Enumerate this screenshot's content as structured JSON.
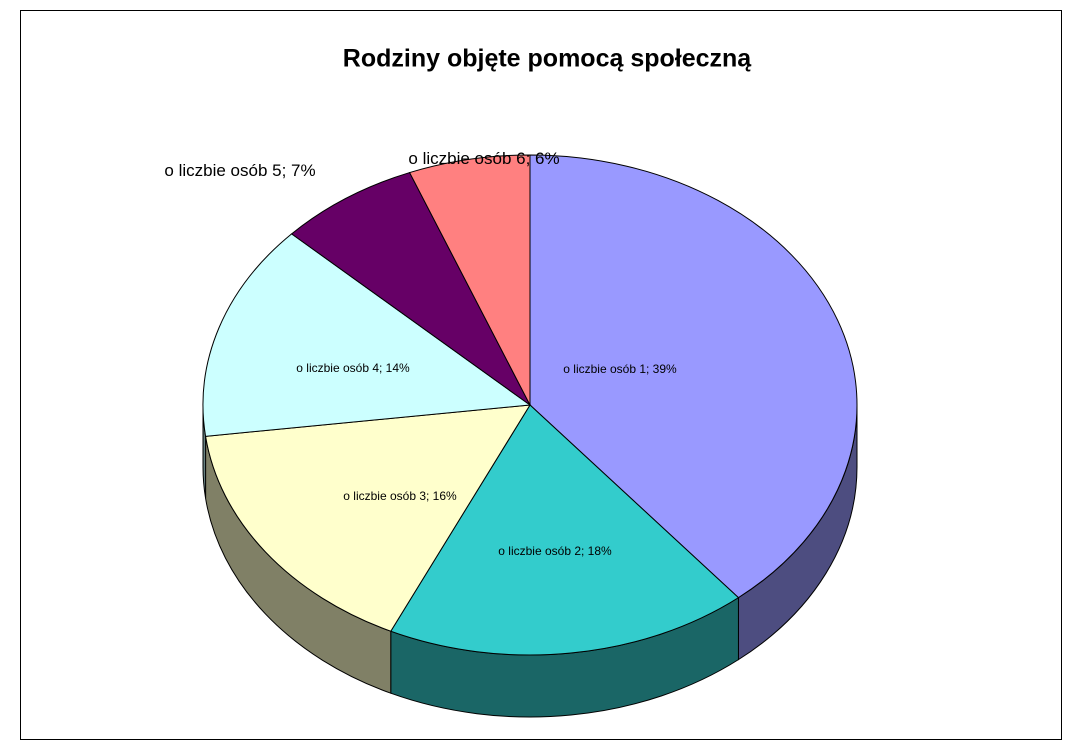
{
  "chart_data": {
    "type": "pie3d",
    "title": "Rodziny objęte pomocą społeczną",
    "categories": [
      "o liczbie osób 1",
      "o liczbie osób 2",
      "o liczbie osób 3",
      "o liczbie osób 4",
      "o liczbie osób 5",
      "o liczbie osób 6"
    ],
    "values": [
      39,
      18,
      16,
      14,
      7,
      6
    ],
    "value_labels": [
      "; 39%",
      "; 18%",
      "; 16%",
      "; 14%",
      "; 7%",
      "; 6%"
    ],
    "colors": [
      "#9999ff",
      "#33cccc",
      "#ffffcc",
      "#ccffff",
      "#660066",
      "#ff8080"
    ],
    "side_colors": [
      "#4d4d80",
      "#1a6666",
      "#808066",
      "#668080",
      "#330033",
      "#804040"
    ]
  }
}
